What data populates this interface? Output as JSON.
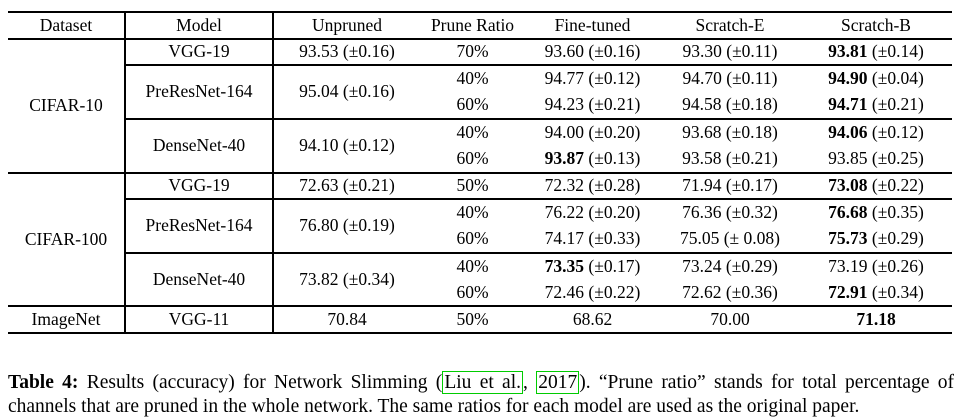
{
  "table": {
    "headers": [
      "Dataset",
      "Model",
      "Unpruned",
      "Prune Ratio",
      "Fine-tuned",
      "Scratch-E",
      "Scratch-B"
    ],
    "groups": [
      {
        "dataset": "CIFAR-10",
        "models": [
          {
            "model": "VGG-19",
            "unpruned": {
              "v": "93.53",
              "pm": "±0.16"
            },
            "rows": [
              {
                "ratio": "70%",
                "finetuned": {
                  "v": "93.60",
                  "pm": "±0.16"
                },
                "scratch_e": {
                  "v": "93.30",
                  "pm": "±0.11"
                },
                "scratch_b": {
                  "v": "93.81",
                  "pm": "±0.14",
                  "bold": true
                }
              }
            ]
          },
          {
            "model": "PreResNet-164",
            "unpruned": {
              "v": "95.04",
              "pm": "±0.16"
            },
            "rows": [
              {
                "ratio": "40%",
                "finetuned": {
                  "v": "94.77",
                  "pm": "±0.12"
                },
                "scratch_e": {
                  "v": "94.70",
                  "pm": "±0.11"
                },
                "scratch_b": {
                  "v": "94.90",
                  "pm": "±0.04",
                  "bold": true
                }
              },
              {
                "ratio": "60%",
                "finetuned": {
                  "v": "94.23",
                  "pm": "±0.21"
                },
                "scratch_e": {
                  "v": "94.58",
                  "pm": "±0.18"
                },
                "scratch_b": {
                  "v": "94.71",
                  "pm": "±0.21",
                  "bold": true
                }
              }
            ]
          },
          {
            "model": "DenseNet-40",
            "unpruned": {
              "v": "94.10",
              "pm": "±0.12"
            },
            "rows": [
              {
                "ratio": "40%",
                "finetuned": {
                  "v": "94.00",
                  "pm": "±0.20"
                },
                "scratch_e": {
                  "v": "93.68",
                  "pm": "±0.18"
                },
                "scratch_b": {
                  "v": "94.06",
                  "pm": "±0.12",
                  "bold": true
                }
              },
              {
                "ratio": "60%",
                "finetuned": {
                  "v": "93.87",
                  "pm": "±0.13",
                  "bold": true
                },
                "scratch_e": {
                  "v": "93.58",
                  "pm": "±0.21"
                },
                "scratch_b": {
                  "v": "93.85",
                  "pm": "±0.25"
                }
              }
            ]
          }
        ]
      },
      {
        "dataset": "CIFAR-100",
        "models": [
          {
            "model": "VGG-19",
            "unpruned": {
              "v": "72.63",
              "pm": "±0.21"
            },
            "rows": [
              {
                "ratio": "50%",
                "finetuned": {
                  "v": "72.32",
                  "pm": "±0.28"
                },
                "scratch_e": {
                  "v": "71.94",
                  "pm": "±0.17"
                },
                "scratch_b": {
                  "v": "73.08",
                  "pm": "±0.22",
                  "bold": true
                }
              }
            ]
          },
          {
            "model": "PreResNet-164",
            "unpruned": {
              "v": "76.80",
              "pm": "±0.19"
            },
            "rows": [
              {
                "ratio": "40%",
                "finetuned": {
                  "v": "76.22",
                  "pm": "±0.20"
                },
                "scratch_e": {
                  "v": "76.36",
                  "pm": "±0.32"
                },
                "scratch_b": {
                  "v": "76.68",
                  "pm": "±0.35",
                  "bold": true
                }
              },
              {
                "ratio": "60%",
                "finetuned": {
                  "v": "74.17",
                  "pm": "±0.33"
                },
                "scratch_e": {
                  "v": "75.05",
                  "pm": "± 0.08"
                },
                "scratch_b": {
                  "v": "75.73",
                  "pm": "±0.29",
                  "bold": true
                }
              }
            ]
          },
          {
            "model": "DenseNet-40",
            "unpruned": {
              "v": "73.82",
              "pm": "±0.34"
            },
            "rows": [
              {
                "ratio": "40%",
                "finetuned": {
                  "v": "73.35",
                  "pm": "±0.17",
                  "bold": true
                },
                "scratch_e": {
                  "v": "73.24",
                  "pm": "±0.29"
                },
                "scratch_b": {
                  "v": "73.19",
                  "pm": "±0.26"
                }
              },
              {
                "ratio": "60%",
                "finetuned": {
                  "v": "72.46",
                  "pm": "±0.22"
                },
                "scratch_e": {
                  "v": "72.62",
                  "pm": "±0.36"
                },
                "scratch_b": {
                  "v": "72.91",
                  "pm": "±0.34",
                  "bold": true
                }
              }
            ]
          }
        ]
      },
      {
        "dataset": "ImageNet",
        "models": [
          {
            "model": "VGG-11",
            "unpruned": {
              "v": "70.84"
            },
            "rows": [
              {
                "ratio": "50%",
                "finetuned": {
                  "v": "68.62"
                },
                "scratch_e": {
                  "v": "70.00"
                },
                "scratch_b": {
                  "v": "71.18",
                  "bold": true
                }
              }
            ]
          }
        ]
      }
    ]
  },
  "caption": {
    "label": "Table 4:",
    "before_cite": " Results (accuracy) for Network Slimming (",
    "cite_author": "Liu et al.",
    "cite_sep": ", ",
    "cite_year": "2017",
    "after_cite": "). “Prune ratio” stands for total percentage of channels that are pruned in the whole network. The same ratios for each model are used as the original paper.",
    "link_box_color": "#00cc00"
  }
}
